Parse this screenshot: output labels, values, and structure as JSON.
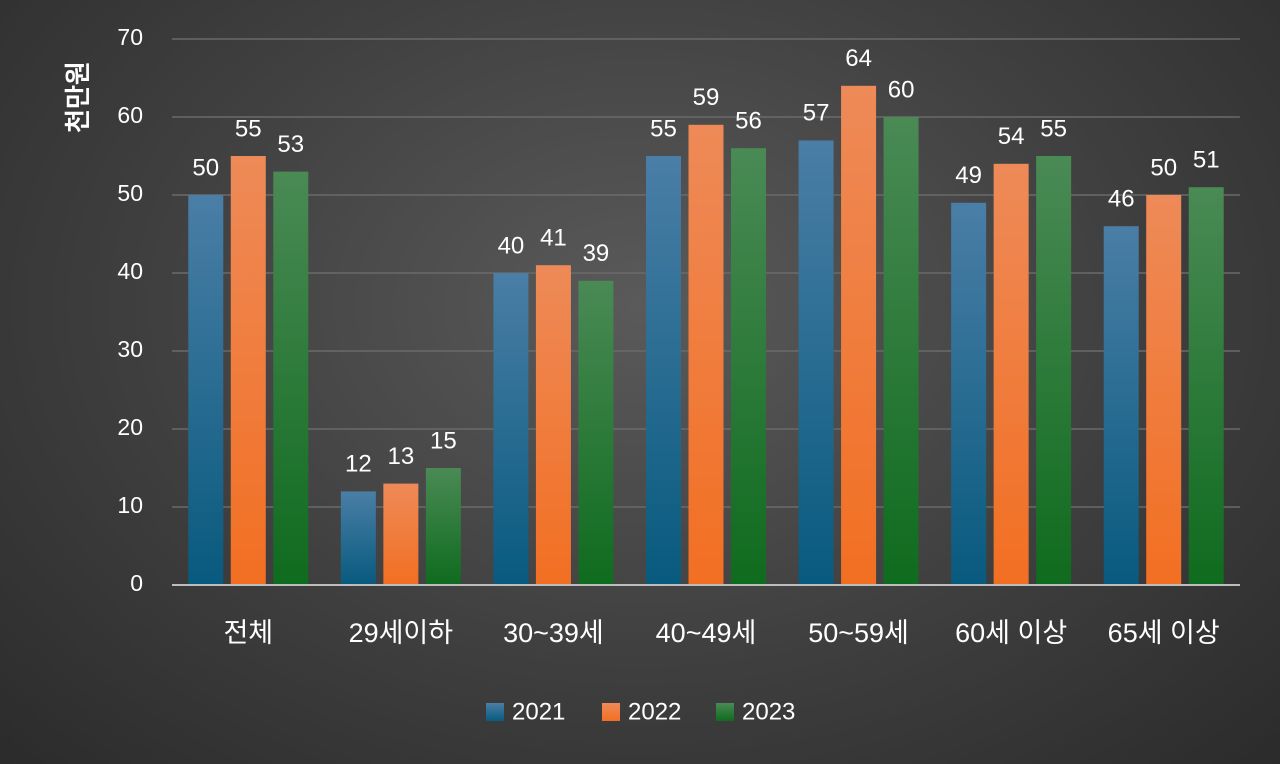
{
  "chart_data": {
    "type": "bar",
    "title": "",
    "xlabel": "",
    "ylabel": "천만원",
    "ylim": [
      0,
      70
    ],
    "yticks": [
      "0",
      "10",
      "20",
      "30",
      "40",
      "50",
      "60",
      "70"
    ],
    "grid": true,
    "legend_position": "bottom",
    "categories": [
      "전체",
      "29세이하",
      "30~39세",
      "40~49세",
      "50~59세",
      "60세 이상",
      "65세 이상"
    ],
    "series": [
      {
        "name": "2021",
        "color": "#2e6f97",
        "values": [
          50,
          12,
          40,
          55,
          57,
          49,
          46
        ],
        "labels": [
          "50",
          "12",
          "40",
          "55",
          "57",
          "49",
          "46"
        ]
      },
      {
        "name": "2022",
        "color": "#f07c3c",
        "values": [
          55,
          13,
          41,
          59,
          64,
          54,
          50
        ],
        "labels": [
          "55",
          "13",
          "41",
          "59",
          "64",
          "54",
          "50"
        ]
      },
      {
        "name": "2023",
        "color": "#2e7d32",
        "values": [
          53,
          15,
          39,
          56,
          60,
          55,
          51
        ],
        "labels": [
          "53",
          "15",
          "39",
          "56",
          "60",
          "55",
          "51"
        ]
      }
    ]
  }
}
